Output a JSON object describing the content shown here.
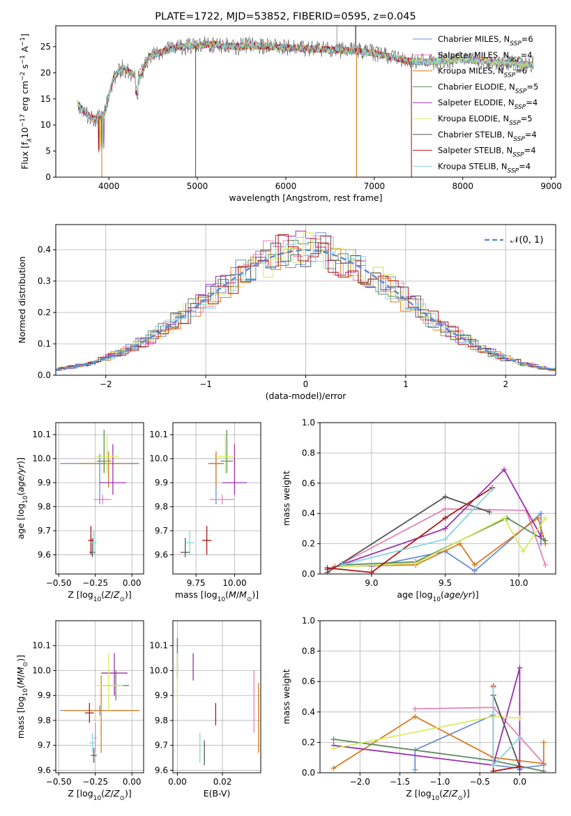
{
  "colors": [
    "#6a8fd8",
    "#e683b5",
    "#d97b1e",
    "#5e8a5a",
    "#9b2fae",
    "#d8eb5e",
    "#555555",
    "#b01515",
    "#7fd8e0"
  ],
  "chart_data": [
    {
      "type": "line",
      "title": "PLATE=1722, MJD=53852, FIBERID=0595, z=0.045",
      "xlabel": "wavelength [Angstrom, rest frame]",
      "ylabel": "Flux [f_λ 10^-17 erg cm^-2 s^-1 A^-1]",
      "xlim": [
        3400,
        9050
      ],
      "ylim": [
        0,
        29
      ],
      "xticks": [
        "4000",
        "5000",
        "6000",
        "7000",
        "8000",
        "9000"
      ],
      "yticks": [
        "0",
        "5",
        "10",
        "15",
        "20",
        "25"
      ],
      "legend_position": "top-right",
      "series": [
        {
          "name": "Chabrier MILES, N_SSP=6"
        },
        {
          "name": "Salpeter MILES, N_SSP=4"
        },
        {
          "name": "Kroupa MILES, N_SSP=6"
        },
        {
          "name": "Chabrier ELODIE, N_SSP=5"
        },
        {
          "name": "Salpeter ELODIE, N_SSP=4"
        },
        {
          "name": "Kroupa ELODIE, N_SSP=5"
        },
        {
          "name": "Chabrier STELIB, N_SSP=4"
        },
        {
          "name": "Salpeter STELIB, N_SSP=4"
        },
        {
          "name": "Kroupa STELIB, N_SSP=4"
        }
      ],
      "spectrum_continuum": {
        "x": [
          3650,
          3750,
          3850,
          3950,
          4050,
          4150,
          4250,
          4350,
          4450,
          4600,
          4800,
          5000,
          5200,
          5400,
          5600,
          5800,
          6000,
          6200,
          6400,
          6600,
          6800,
          7000,
          7200,
          7400,
          7600,
          7800,
          8000,
          8200,
          8400,
          8600,
          8800
        ],
        "y": [
          14,
          12,
          11,
          12,
          19,
          21,
          20,
          19,
          23,
          24,
          25,
          25.2,
          25.5,
          25,
          25.2,
          25,
          24.8,
          24.6,
          24.5,
          24.3,
          24.2,
          23.8,
          23,
          22.2,
          22,
          22.3,
          22.5,
          22.3,
          22,
          21.8,
          21.5
        ]
      }
    },
    {
      "type": "histogram",
      "xlabel": "(data-model)/error",
      "ylabel": "Normed distribution",
      "xlim": [
        -2.5,
        2.5
      ],
      "ylim": [
        0,
        0.48
      ],
      "xticks": [
        "−2",
        "−1",
        "0",
        "1",
        "2"
      ],
      "yticks": [
        "0.0",
        "0.1",
        "0.2",
        "0.3",
        "0.4"
      ],
      "grid": true,
      "legend_position": "top-right",
      "reference_curve": {
        "name": "𝒩(0, 1)",
        "mu": 0,
        "sigma": 1
      }
    },
    {
      "type": "scatter",
      "xlabel": "Z [log10(Z/Z☉)]",
      "ylabel": "age [log10(age/yr)]",
      "xlim": [
        -0.52,
        0.08
      ],
      "ylim": [
        9.52,
        10.15
      ],
      "xticks": [
        "−0.50",
        "−0.25",
        "0.00"
      ],
      "yticks": [
        "9.6",
        "9.7",
        "9.8",
        "9.9",
        "10.0",
        "10.1"
      ],
      "grid": true,
      "points": [
        {
          "x": -0.22,
          "y": 9.98,
          "xerr": [
            0.27,
            0.27
          ],
          "yerr": [
            0.17,
            0.04
          ]
        },
        {
          "x": -0.2,
          "y": 9.83,
          "xerr": [
            0.06,
            0.06
          ],
          "yerr": [
            0.02,
            0.02
          ]
        },
        {
          "x": -0.16,
          "y": 9.98,
          "xerr": [
            0.2,
            0.2
          ],
          "yerr": [
            0.1,
            0.05
          ]
        },
        {
          "x": -0.19,
          "y": 9.99,
          "xerr": [
            0.05,
            0.05
          ],
          "yerr": [
            0.05,
            0.13
          ]
        },
        {
          "x": -0.13,
          "y": 9.9,
          "xerr": [
            0.09,
            0.09
          ],
          "yerr": [
            0.05,
            0.16
          ]
        },
        {
          "x": -0.17,
          "y": 10.01,
          "xerr": [
            0.08,
            0.08
          ],
          "yerr": [
            0.07,
            0.09
          ]
        },
        {
          "x": -0.27,
          "y": 9.61,
          "xerr": [
            0.02,
            0.02
          ],
          "yerr": [
            0.02,
            0.06
          ]
        },
        {
          "x": -0.28,
          "y": 9.66,
          "xerr": [
            0.02,
            0.02
          ],
          "yerr": [
            0.06,
            0.06
          ]
        },
        {
          "x": -0.26,
          "y": 9.65,
          "xerr": [
            0.02,
            0.02
          ],
          "yerr": [
            0.05,
            0.05
          ]
        }
      ]
    },
    {
      "type": "scatter",
      "xlabel": "mass [log10(M/M☉)]",
      "ylabel": "",
      "xlim": [
        9.6,
        10.17
      ],
      "ylim": [
        9.52,
        10.15
      ],
      "xticks": [
        "9.75",
        "10.00"
      ],
      "yticks": [
        "9.6",
        "9.7",
        "9.8",
        "9.9",
        "10.0",
        "10.1"
      ],
      "grid": true,
      "points": [
        {
          "x": 9.88,
          "y": 9.98,
          "xerr": [
            0.05,
            0.05
          ],
          "yerr": [
            0.17,
            0.04
          ]
        },
        {
          "x": 9.92,
          "y": 9.83,
          "xerr": [
            0.08,
            0.08
          ],
          "yerr": [
            0.02,
            0.02
          ]
        },
        {
          "x": 9.88,
          "y": 9.98,
          "xerr": [
            0.05,
            0.05
          ],
          "yerr": [
            0.1,
            0.05
          ]
        },
        {
          "x": 9.95,
          "y": 9.99,
          "xerr": [
            0.04,
            0.04
          ],
          "yerr": [
            0.05,
            0.13
          ]
        },
        {
          "x": 10.0,
          "y": 9.9,
          "xerr": [
            0.08,
            0.08
          ],
          "yerr": [
            0.05,
            0.16
          ]
        },
        {
          "x": 9.94,
          "y": 10.01,
          "xerr": [
            0.06,
            0.06
          ],
          "yerr": [
            0.07,
            0.09
          ]
        },
        {
          "x": 9.68,
          "y": 9.61,
          "xerr": [
            0.03,
            0.03
          ],
          "yerr": [
            0.02,
            0.06
          ]
        },
        {
          "x": 9.82,
          "y": 9.66,
          "xerr": [
            0.03,
            0.03
          ],
          "yerr": [
            0.06,
            0.06
          ]
        },
        {
          "x": 9.71,
          "y": 9.65,
          "xerr": [
            0.03,
            0.03
          ],
          "yerr": [
            0.05,
            0.05
          ]
        }
      ]
    },
    {
      "type": "line",
      "xlabel": "age [log10(age/yr)]",
      "ylabel": "mass weight",
      "xlim": [
        8.65,
        10.25
      ],
      "ylim": [
        0,
        1.0
      ],
      "xticks": [
        "9.0",
        "9.5",
        "10.0"
      ],
      "yticks": [
        "0.0",
        "0.2",
        "0.4",
        "0.6",
        "0.8",
        "1.0"
      ],
      "grid": true,
      "series": [
        {
          "x": [
            9.0,
            9.5,
            9.7,
            10.15,
            10.15
          ],
          "y": [
            0.05,
            0.15,
            0.02,
            0.4,
            0.2
          ]
        },
        {
          "x": [
            8.8,
            9.5,
            10.05,
            10.18
          ],
          "y": [
            0.07,
            0.43,
            0.42,
            0.06
          ]
        },
        {
          "x": [
            8.75,
            9.3,
            9.6,
            9.7,
            10.13,
            10.18
          ],
          "y": [
            0.05,
            0.06,
            0.2,
            0.06,
            0.37,
            0.2
          ]
        },
        {
          "x": [
            8.8,
            9.3,
            9.92,
            10.18
          ],
          "y": [
            0.06,
            0.08,
            0.37,
            0.22
          ]
        },
        {
          "x": [
            8.7,
            9.5,
            9.9,
            10.15
          ],
          "y": [
            0.03,
            0.3,
            0.69,
            0.25
          ]
        },
        {
          "x": [
            8.8,
            9.3,
            9.9,
            10.03,
            10.18
          ],
          "y": [
            0.05,
            0.07,
            0.37,
            0.15,
            0.37
          ]
        },
        {
          "x": [
            8.7,
            9.5,
            9.8
          ],
          "y": [
            0.01,
            0.51,
            0.41
          ]
        },
        {
          "x": [
            8.7,
            9.0,
            9.5,
            9.82
          ],
          "y": [
            0.04,
            0.01,
            0.37,
            0.57
          ]
        },
        {
          "x": [
            8.8,
            9.5,
            9.82
          ],
          "y": [
            0.06,
            0.23,
            0.56
          ]
        }
      ]
    },
    {
      "type": "scatter",
      "xlabel": "Z [log10(Z/Z☉)]",
      "ylabel": "mass [log10(M/M☉)]",
      "xlim": [
        -0.52,
        0.08
      ],
      "ylim": [
        9.59,
        10.2
      ],
      "xticks": [
        "−0.50",
        "−0.25",
        "0.00"
      ],
      "yticks": [
        "9.6",
        "9.7",
        "9.8",
        "9.9",
        "10.0",
        "10.1"
      ],
      "grid": true,
      "points": [
        {
          "x": -0.22,
          "y": 9.84,
          "xerr": [
            0.27,
            0.27
          ],
          "yerr": [
            0.02,
            0.02
          ]
        },
        {
          "x": -0.25,
          "y": 9.73,
          "xerr": [
            0.01,
            0.01
          ],
          "yerr": [
            0.06,
            0.06
          ]
        },
        {
          "x": -0.21,
          "y": 9.84,
          "xerr": [
            0.26,
            0.26
          ],
          "yerr": [
            0.17,
            0.14
          ]
        },
        {
          "x": -0.11,
          "y": 9.94,
          "xerr": [
            0.09,
            0.09
          ],
          "yerr": [
            0.06,
            0.06
          ]
        },
        {
          "x": -0.12,
          "y": 9.99,
          "xerr": [
            0.09,
            0.09
          ],
          "yerr": [
            0.09,
            0.08
          ]
        },
        {
          "x": -0.16,
          "y": 9.94,
          "xerr": [
            0.1,
            0.1
          ],
          "yerr": [
            0.1,
            0.13
          ]
        },
        {
          "x": -0.26,
          "y": 9.66,
          "xerr": [
            0.02,
            0.02
          ],
          "yerr": [
            0.03,
            0.03
          ]
        },
        {
          "x": -0.29,
          "y": 9.83,
          "xerr": [
            0.03,
            0.03
          ],
          "yerr": [
            0.04,
            0.04
          ]
        },
        {
          "x": -0.27,
          "y": 9.71,
          "xerr": [
            0.02,
            0.02
          ],
          "yerr": [
            0.04,
            0.04
          ]
        }
      ]
    },
    {
      "type": "scatter",
      "xlabel": "E(B-V)",
      "ylabel": "",
      "xlim": [
        -0.002,
        0.037
      ],
      "ylim": [
        9.59,
        10.2
      ],
      "xticks": [
        "0.00",
        "0.02"
      ],
      "yticks": [
        "9.6",
        "9.7",
        "9.8",
        "9.9",
        "10.0",
        "10.1"
      ],
      "grid": true,
      "points": [
        {
          "x": 0.0,
          "y": 10.05,
          "yerr": [
            0.08,
            0.08
          ]
        },
        {
          "x": 0.034,
          "y": 9.88,
          "yerr": [
            0.13,
            0.12
          ]
        },
        {
          "x": 0.036,
          "y": 9.81,
          "yerr": [
            0.14,
            0.14
          ]
        },
        {
          "x": 0.0,
          "y": 10.02,
          "yerr": [
            0.05,
            0.11
          ]
        },
        {
          "x": 0.007,
          "y": 10.02,
          "yerr": [
            0.06,
            0.05
          ]
        },
        {
          "x": 0.0,
          "y": 9.97,
          "yerr": [
            0.11,
            0.1
          ]
        },
        {
          "x": 0.012,
          "y": 9.67,
          "yerr": [
            0.05,
            0.05
          ]
        },
        {
          "x": 0.017,
          "y": 9.83,
          "yerr": [
            0.05,
            0.04
          ]
        },
        {
          "x": 0.01,
          "y": 9.69,
          "yerr": [
            0.06,
            0.06
          ]
        }
      ]
    },
    {
      "type": "line",
      "xlabel": "Z [log10(Z/Z☉)]",
      "ylabel": "mass weight",
      "xlim": [
        -2.5,
        0.45
      ],
      "ylim": [
        0,
        1.0
      ],
      "xticks": [
        "−2.0",
        "−1.5",
        "−1.0",
        "−0.5",
        "0.0"
      ],
      "yticks": [
        "0.0",
        "0.2",
        "0.4",
        "0.6",
        "0.8",
        "1.0"
      ],
      "grid": true,
      "series": [
        {
          "x": [
            -1.31,
            -1.31,
            -0.33,
            -0.33,
            0.0,
            0.3
          ],
          "y": [
            0.02,
            0.15,
            0.38,
            0.05,
            0.03,
            0.05
          ]
        },
        {
          "x": [
            -1.31,
            -0.33,
            0.3
          ],
          "y": [
            0.42,
            0.43,
            0.06
          ]
        },
        {
          "x": [
            -2.33,
            -1.31,
            -0.33,
            0.3,
            0.3
          ],
          "y": [
            0.03,
            0.37,
            0.1,
            0.06,
            0.2
          ]
        },
        {
          "x": [
            -2.33,
            -0.33,
            0.3
          ],
          "y": [
            0.22,
            0.08,
            0.01
          ]
        },
        {
          "x": [
            -2.33,
            -0.33,
            0.0,
            0.0
          ],
          "y": [
            0.18,
            0.05,
            0.69,
            0.02
          ]
        },
        {
          "x": [
            -2.33,
            -0.33,
            0.0
          ],
          "y": [
            0.16,
            0.37,
            0.36
          ]
        },
        {
          "x": [
            -0.33,
            0.0
          ],
          "y": [
            0.51,
            0.04
          ]
        },
        {
          "x": [
            -0.33,
            -0.33,
            0.0
          ],
          "y": [
            0.57,
            0.01,
            0.04
          ]
        },
        {
          "x": [
            -0.33,
            -0.33,
            0.0
          ],
          "y": [
            0.56,
            0.05,
            0.23
          ]
        }
      ]
    }
  ]
}
